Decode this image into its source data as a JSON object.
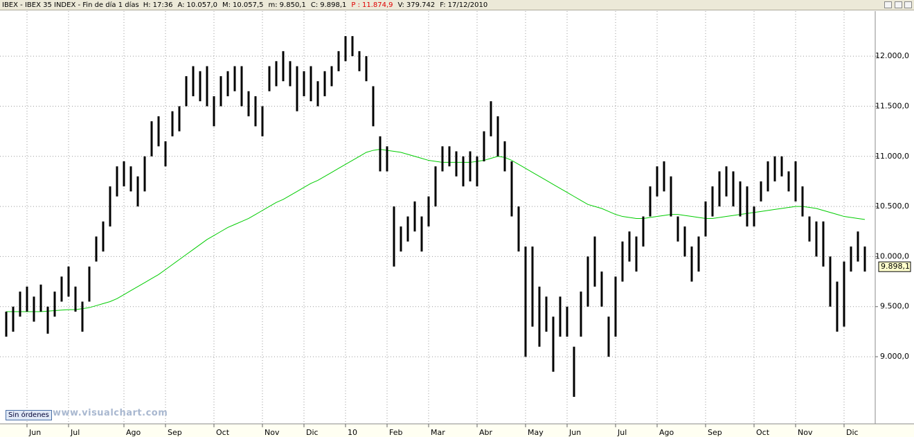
{
  "toolbar": {
    "symbol": "IBEX - IBEX 35 INDEX - Fin de día 1 días",
    "fields": [
      {
        "label": "H:",
        "value": "17:36"
      },
      {
        "label": "A:",
        "value": "10.057,0"
      },
      {
        "label": "M:",
        "value": "10.057,5"
      },
      {
        "label": "m:",
        "value": "9.850,1"
      },
      {
        "label": "C:",
        "value": "9.898,1"
      },
      {
        "label": "P :",
        "value": "11.874,9"
      },
      {
        "label": "V:",
        "value": "379.742"
      },
      {
        "label": "F:",
        "value": "17/12/2010"
      }
    ]
  },
  "footer": {
    "orders": "Sin órdenes",
    "website": "www.visualchart.com"
  },
  "chart_data": {
    "type": "ohlc",
    "color": "#000000",
    "grid": true,
    "categories": [
      null,
      null,
      null,
      "Jun",
      null,
      null,
      null,
      null,
      null,
      "Jul",
      null,
      null,
      null,
      null,
      null,
      null,
      null,
      "Ago",
      null,
      null,
      null,
      null,
      null,
      "Sep",
      null,
      null,
      null,
      null,
      null,
      null,
      "Oct",
      null,
      null,
      null,
      null,
      null,
      null,
      "Nov",
      null,
      null,
      null,
      null,
      null,
      "Dic",
      null,
      null,
      null,
      null,
      null,
      "10",
      null,
      null,
      null,
      null,
      null,
      "Feb",
      null,
      null,
      null,
      null,
      null,
      "Mar",
      null,
      null,
      null,
      null,
      null,
      null,
      "Abr",
      null,
      null,
      null,
      null,
      null,
      null,
      "May",
      null,
      null,
      null,
      null,
      null,
      "Jun",
      null,
      null,
      null,
      null,
      null,
      null,
      "Jul",
      null,
      null,
      null,
      null,
      null,
      "Ago",
      null,
      null,
      null,
      null,
      null,
      null,
      "Sep",
      null,
      null,
      null,
      null,
      null,
      null,
      "Oct",
      null,
      null,
      null,
      null,
      null,
      "Nov",
      null,
      null,
      null,
      null,
      null,
      null,
      "Dic",
      null,
      null,
      null
    ],
    "high": [
      9450,
      9500,
      9650,
      9700,
      9600,
      9720,
      9500,
      9650,
      9800,
      9900,
      9700,
      9550,
      9900,
      10200,
      10350,
      10700,
      10900,
      10950,
      10900,
      10800,
      11000,
      11350,
      11400,
      11150,
      11450,
      11500,
      11800,
      11900,
      11850,
      11900,
      11600,
      11800,
      11850,
      11900,
      11900,
      11650,
      11600,
      11500,
      11900,
      11950,
      12050,
      11950,
      11900,
      11850,
      11900,
      11750,
      11850,
      11900,
      12050,
      12200,
      12200,
      12050,
      12000,
      11700,
      11200,
      11100,
      10500,
      10300,
      10400,
      10550,
      10400,
      10600,
      10900,
      11100,
      11100,
      11050,
      11000,
      11050,
      11000,
      11250,
      11550,
      11400,
      11150,
      10950,
      10500,
      10100,
      10100,
      9700,
      9600,
      9400,
      9600,
      9500,
      9100,
      9650,
      10000,
      10200,
      9850,
      9400,
      9800,
      10150,
      10250,
      10200,
      10400,
      10700,
      10900,
      10950,
      10800,
      10400,
      10300,
      10100,
      10200,
      10550,
      10700,
      10850,
      10900,
      10850,
      10750,
      10700,
      10500,
      10750,
      10950,
      11000,
      11000,
      10850,
      10950,
      10700,
      10400,
      10350,
      10350,
      10000,
      9750,
      9950,
      10100,
      10250,
      10100
    ],
    "low": [
      9200,
      9250,
      9400,
      9450,
      9350,
      9450,
      9230,
      9400,
      9550,
      9600,
      9450,
      9250,
      9550,
      9950,
      10050,
      10300,
      10600,
      10700,
      10650,
      10500,
      10650,
      11000,
      11100,
      10900,
      11200,
      11250,
      11500,
      11600,
      11550,
      11500,
      11300,
      11500,
      11600,
      11650,
      11500,
      11400,
      11300,
      11200,
      11650,
      11700,
      11750,
      11700,
      11450,
      11600,
      11550,
      11500,
      11600,
      11700,
      11850,
      11950,
      12000,
      11850,
      11750,
      11300,
      10850,
      10850,
      9900,
      10050,
      10150,
      10250,
      10050,
      10300,
      10500,
      10850,
      10900,
      10800,
      10700,
      10750,
      10700,
      10950,
      11200,
      11000,
      10850,
      10400,
      10050,
      9000,
      9300,
      9100,
      9250,
      8850,
      9200,
      9200,
      8600,
      9200,
      9500,
      9700,
      9500,
      9000,
      9200,
      9750,
      9950,
      9850,
      10100,
      10400,
      10600,
      10650,
      10400,
      10150,
      10000,
      9750,
      9850,
      10200,
      10400,
      10500,
      10600,
      10500,
      10400,
      10300,
      10300,
      10550,
      10650,
      10750,
      10800,
      10650,
      10550,
      10400,
      10150,
      10000,
      9900,
      9500,
      9250,
      9300,
      9850,
      9950,
      9850
    ],
    "moving_average": {
      "color": "#00cc00",
      "values": [
        9450,
        9450,
        9450,
        9450,
        9450,
        9450,
        9455,
        9460,
        9465,
        9470,
        9470,
        9480,
        9490,
        9510,
        9530,
        9550,
        9580,
        9620,
        9660,
        9700,
        9740,
        9780,
        9820,
        9870,
        9920,
        9970,
        10020,
        10070,
        10120,
        10170,
        10210,
        10250,
        10290,
        10320,
        10350,
        10380,
        10420,
        10460,
        10500,
        10540,
        10570,
        10610,
        10650,
        10690,
        10730,
        10760,
        10800,
        10840,
        10880,
        10920,
        10960,
        11000,
        11040,
        11060,
        11070,
        11060,
        11050,
        11040,
        11020,
        11000,
        10980,
        10960,
        10950,
        10940,
        10940,
        10940,
        10940,
        10940,
        10950,
        10960,
        10980,
        11000,
        10990,
        10960,
        10920,
        10880,
        10840,
        10800,
        10760,
        10720,
        10680,
        10640,
        10600,
        10560,
        10520,
        10500,
        10480,
        10450,
        10420,
        10400,
        10390,
        10380,
        10380,
        10390,
        10400,
        10410,
        10420,
        10420,
        10410,
        10400,
        10390,
        10380,
        10380,
        10390,
        10400,
        10410,
        10420,
        10430,
        10440,
        10450,
        10460,
        10470,
        10480,
        10490,
        10500,
        10500,
        10490,
        10480,
        10460,
        10440,
        10420,
        10400,
        10390,
        10380,
        10370
      ]
    },
    "ylim": [
      8330,
      12450
    ],
    "yticks": [
      {
        "value": 9000,
        "label": "9.000,0"
      },
      {
        "value": 9500,
        "label": "9.500,0"
      },
      {
        "value": 10000,
        "label": "10.000,0"
      },
      {
        "value": 10500,
        "label": "10.500,0"
      },
      {
        "value": 11000,
        "label": "11.000,0"
      },
      {
        "value": 11500,
        "label": "11.500,0"
      },
      {
        "value": 12000,
        "label": "12.000,0"
      }
    ],
    "last_value": {
      "value": 9898.1,
      "label": "9.898,1"
    }
  }
}
